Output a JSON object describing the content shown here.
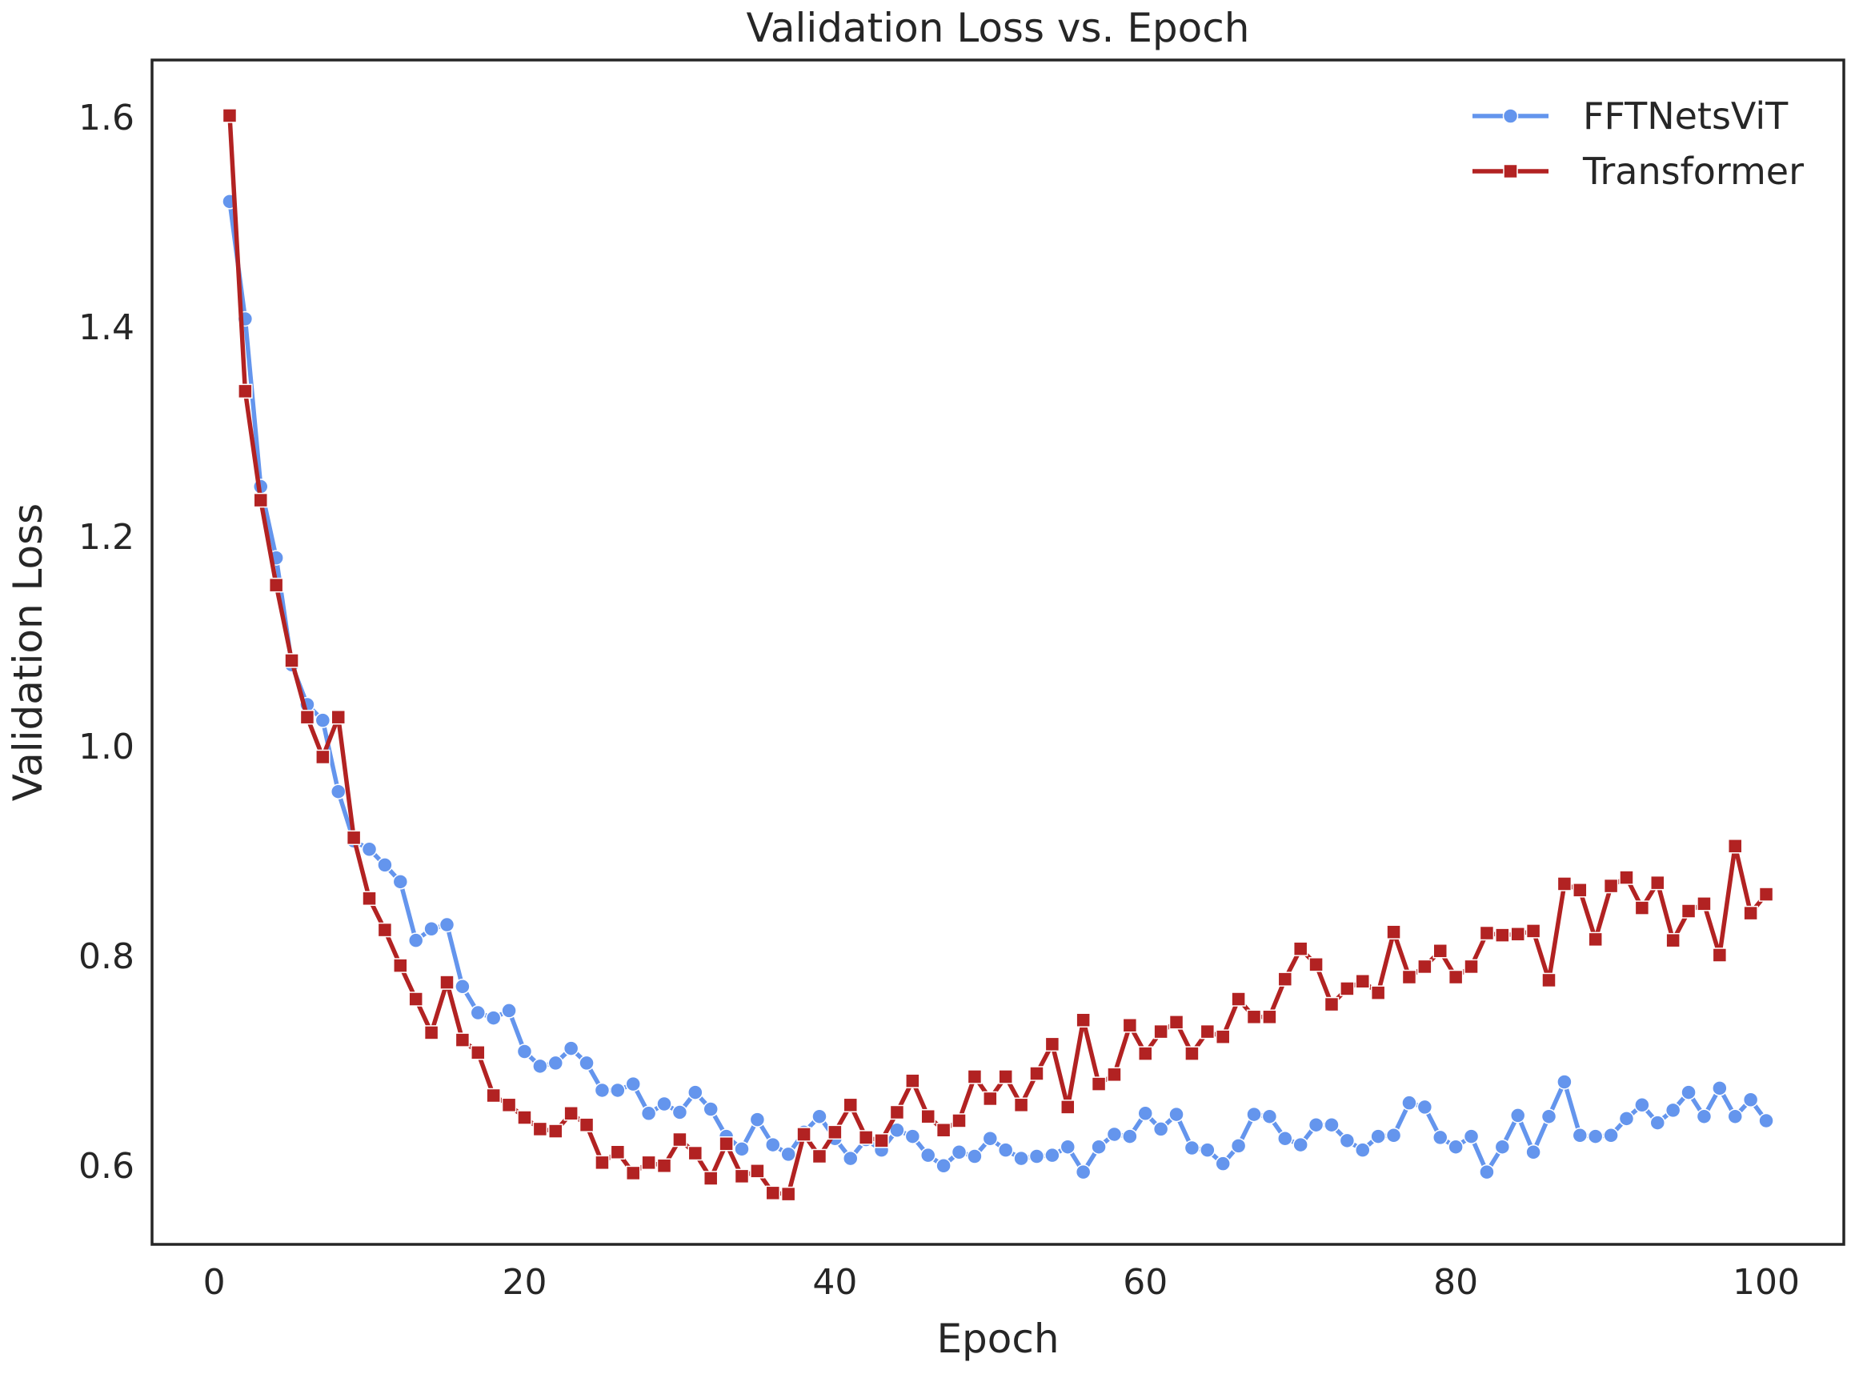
{
  "chart_data": {
    "type": "line",
    "title": "Validation Loss vs. Epoch",
    "xlabel": "Epoch",
    "ylabel": "Validation Loss",
    "xlim": [
      -4,
      105
    ],
    "ylim": [
      0.525,
      1.655
    ],
    "xticks": [
      0,
      20,
      40,
      60,
      80,
      100
    ],
    "yticks": [
      0.6,
      0.8,
      1.0,
      1.2,
      1.4,
      1.6
    ],
    "xtick_labels": [
      "0",
      "20",
      "40",
      "60",
      "80",
      "100"
    ],
    "ytick_labels": [
      "0.6",
      "0.8",
      "1.0",
      "1.2",
      "1.4",
      "1.6"
    ],
    "grid": false,
    "legend_position": "top-right",
    "x": [
      1,
      2,
      3,
      4,
      5,
      6,
      7,
      8,
      9,
      10,
      11,
      12,
      13,
      14,
      15,
      16,
      17,
      18,
      19,
      20,
      21,
      22,
      23,
      24,
      25,
      26,
      27,
      28,
      29,
      30,
      31,
      32,
      33,
      34,
      35,
      36,
      37,
      38,
      39,
      40,
      41,
      42,
      43,
      44,
      45,
      46,
      47,
      48,
      49,
      50,
      51,
      52,
      53,
      54,
      55,
      56,
      57,
      58,
      59,
      60,
      61,
      62,
      63,
      64,
      65,
      66,
      67,
      68,
      69,
      70,
      71,
      72,
      73,
      74,
      75,
      76,
      77,
      78,
      79,
      80,
      81,
      82,
      83,
      84,
      85,
      86,
      87,
      88,
      89,
      90,
      91,
      92,
      93,
      94,
      95,
      96,
      97,
      98,
      99,
      100
    ],
    "series": [
      {
        "name": "FFTNetsViT",
        "color": "#6495ED",
        "marker": "circle",
        "values": [
          1.52,
          1.408,
          1.248,
          1.18,
          1.078,
          1.04,
          1.025,
          0.957,
          0.91,
          0.902,
          0.887,
          0.871,
          0.815,
          0.826,
          0.83,
          0.771,
          0.746,
          0.741,
          0.748,
          0.709,
          0.695,
          0.698,
          0.712,
          0.698,
          0.672,
          0.672,
          0.678,
          0.65,
          0.659,
          0.651,
          0.67,
          0.654,
          0.628,
          0.616,
          0.644,
          0.62,
          0.611,
          0.632,
          0.647,
          0.626,
          0.607,
          0.625,
          0.615,
          0.634,
          0.628,
          0.61,
          0.6,
          0.613,
          0.609,
          0.626,
          0.615,
          0.607,
          0.609,
          0.61,
          0.618,
          0.594,
          0.618,
          0.63,
          0.628,
          0.65,
          0.635,
          0.649,
          0.617,
          0.615,
          0.602,
          0.619,
          0.649,
          0.647,
          0.626,
          0.62,
          0.639,
          0.639,
          0.624,
          0.615,
          0.628,
          0.629,
          0.66,
          0.656,
          0.627,
          0.618,
          0.628,
          0.594,
          0.618,
          0.648,
          0.613,
          0.647,
          0.68,
          0.629,
          0.628,
          0.629,
          0.645,
          0.658,
          0.641,
          0.653,
          0.67,
          0.647,
          0.674,
          0.647,
          0.663,
          0.643
        ]
      },
      {
        "name": "Transformer",
        "color": "#B22222",
        "marker": "square",
        "values": [
          1.602,
          1.339,
          1.235,
          1.154,
          1.082,
          1.028,
          0.99,
          1.028,
          0.913,
          0.855,
          0.825,
          0.791,
          0.759,
          0.727,
          0.775,
          0.72,
          0.708,
          0.667,
          0.658,
          0.646,
          0.635,
          0.633,
          0.65,
          0.639,
          0.603,
          0.613,
          0.593,
          0.603,
          0.6,
          0.625,
          0.612,
          0.588,
          0.621,
          0.59,
          0.595,
          0.574,
          0.573,
          0.63,
          0.609,
          0.632,
          0.658,
          0.627,
          0.624,
          0.651,
          0.681,
          0.647,
          0.634,
          0.643,
          0.685,
          0.664,
          0.685,
          0.658,
          0.688,
          0.716,
          0.656,
          0.739,
          0.678,
          0.687,
          0.734,
          0.707,
          0.728,
          0.737,
          0.707,
          0.728,
          0.723,
          0.759,
          0.742,
          0.742,
          0.778,
          0.807,
          0.792,
          0.754,
          0.769,
          0.776,
          0.765,
          0.823,
          0.78,
          0.79,
          0.805,
          0.78,
          0.79,
          0.822,
          0.82,
          0.821,
          0.824,
          0.777,
          0.869,
          0.863,
          0.816,
          0.867,
          0.875,
          0.846,
          0.87,
          0.815,
          0.843,
          0.85,
          0.801,
          0.905,
          0.841,
          0.859
        ]
      }
    ]
  }
}
